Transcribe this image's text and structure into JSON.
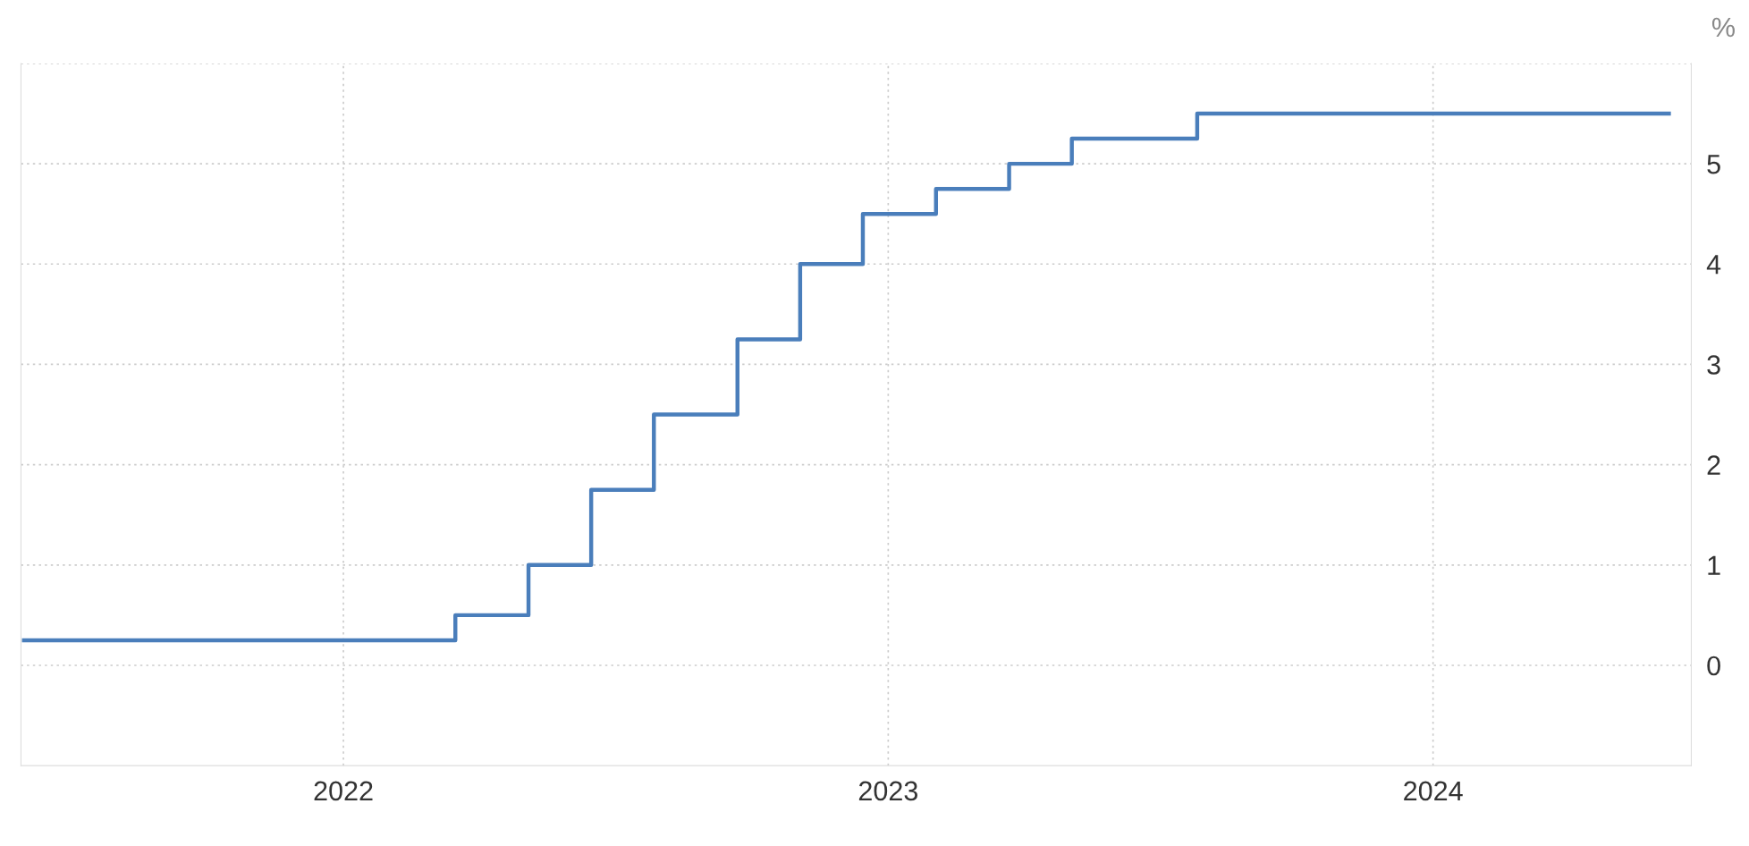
{
  "chart_data": {
    "type": "step",
    "ylabel": "%",
    "x": [
      "2021-06-01",
      "2022-03-17",
      "2022-05-05",
      "2022-06-16",
      "2022-07-28",
      "2022-09-22",
      "2022-11-03",
      "2022-12-15",
      "2023-02-02",
      "2023-03-23",
      "2023-05-04",
      "2023-07-27",
      "2024-06-07"
    ],
    "series": [
      {
        "color": "#4a7ebb",
        "values": [
          0.25,
          0.5,
          1.0,
          1.75,
          2.5,
          3.25,
          4.0,
          4.5,
          4.75,
          5.0,
          5.25,
          5.5,
          5.5
        ]
      }
    ],
    "xlim": [
      "2021-05-30",
      "2024-06-22"
    ],
    "xticks": [
      {
        "value": "2022-01-01",
        "label": "2022"
      },
      {
        "value": "2023-01-01",
        "label": "2023"
      },
      {
        "value": "2024-01-01",
        "label": "2024"
      }
    ],
    "ylim": [
      -1,
      6
    ],
    "yticks": [
      0,
      1,
      2,
      3,
      4,
      5,
      {
        "value": 6,
        "label": null
      }
    ],
    "grid": true,
    "legend": false,
    "marker": "none",
    "line_style": "solid"
  }
}
